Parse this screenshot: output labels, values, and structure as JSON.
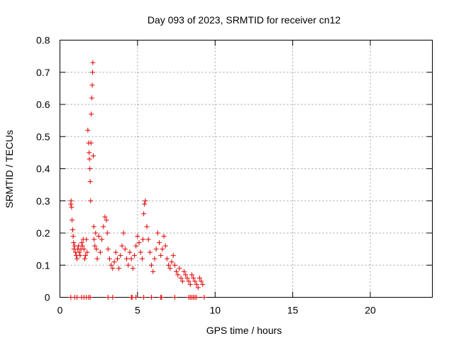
{
  "chart_data": {
    "type": "scatter",
    "title": "Day 093 of 2023, SRMTID for receiver cn12",
    "xlabel": "GPS time / hours",
    "ylabel": "SRMTID / TECUs",
    "xlim": [
      0,
      24
    ],
    "ylim": [
      0,
      0.8
    ],
    "xticks": [
      0,
      5,
      10,
      15,
      20
    ],
    "yticks": [
      0,
      0.1,
      0.2,
      0.3,
      0.4,
      0.5,
      0.6,
      0.7,
      0.8
    ],
    "xtick_labels": [
      "0",
      "5",
      "10",
      "15",
      "20"
    ],
    "ytick_labels": [
      "0",
      "0.1",
      "0.2",
      "0.3",
      "0.4",
      "0.5",
      "0.6",
      "0.7",
      "0.8"
    ],
    "grid": true,
    "marker": "+",
    "marker_color": "#e00000",
    "x": [
      0.7,
      0.72,
      0.75,
      0.78,
      0.82,
      0.85,
      0.88,
      0.9,
      0.95,
      1.0,
      1.05,
      1.1,
      1.15,
      1.2,
      1.25,
      1.3,
      1.35,
      1.4,
      1.45,
      1.5,
      1.55,
      1.6,
      1.65,
      1.7,
      1.75,
      1.8,
      1.85,
      1.88,
      1.9,
      1.93,
      1.95,
      1.98,
      2.0,
      2.02,
      2.05,
      2.08,
      2.1,
      2.12,
      2.15,
      2.18,
      2.2,
      2.25,
      2.3,
      2.35,
      2.4,
      2.5,
      2.6,
      2.7,
      2.8,
      2.9,
      3.0,
      3.05,
      3.1,
      3.2,
      3.3,
      3.4,
      3.5,
      3.6,
      3.7,
      3.8,
      3.9,
      4.0,
      4.1,
      4.2,
      4.3,
      4.4,
      4.5,
      4.6,
      4.7,
      4.8,
      4.9,
      5.0,
      5.1,
      5.2,
      5.3,
      5.35,
      5.4,
      5.45,
      5.5,
      5.6,
      5.7,
      5.8,
      5.9,
      6.0,
      6.1,
      6.2,
      6.3,
      6.4,
      6.5,
      6.6,
      6.7,
      6.8,
      6.9,
      7.0,
      7.1,
      7.2,
      7.3,
      7.4,
      7.5,
      7.6,
      7.7,
      7.8,
      7.9,
      8.0,
      8.1,
      8.2,
      8.3,
      8.4,
      8.5,
      8.6,
      8.7,
      8.8,
      8.9,
      9.0,
      9.1,
      9.2
    ],
    "y": [
      0.29,
      0.3,
      0.28,
      0.24,
      0.21,
      0.19,
      0.17,
      0.15,
      0.16,
      0.14,
      0.13,
      0.12,
      0.15,
      0.16,
      0.14,
      0.13,
      0.15,
      0.17,
      0.16,
      0.18,
      0.15,
      0.12,
      0.13,
      0.18,
      0.14,
      0.52,
      0.48,
      0.45,
      0.43,
      0.4,
      0.36,
      0.3,
      0.48,
      0.57,
      0.62,
      0.66,
      0.7,
      0.73,
      0.44,
      0.22,
      0.18,
      0.16,
      0.2,
      0.15,
      0.12,
      0.19,
      0.14,
      0.18,
      0.22,
      0.25,
      0.24,
      0.2,
      0.15,
      0.12,
      0.1,
      0.09,
      0.11,
      0.14,
      0.12,
      0.09,
      0.13,
      0.16,
      0.2,
      0.15,
      0.12,
      0.1,
      0.14,
      0.12,
      0.09,
      0.13,
      0.16,
      0.19,
      0.17,
      0.14,
      0.12,
      0.18,
      0.26,
      0.29,
      0.3,
      0.22,
      0.18,
      0.14,
      0.1,
      0.08,
      0.12,
      0.15,
      0.2,
      0.17,
      0.13,
      0.15,
      0.19,
      0.16,
      0.12,
      0.1,
      0.09,
      0.11,
      0.13,
      0.1,
      0.08,
      0.07,
      0.09,
      0.06,
      0.05,
      0.08,
      0.07,
      0.06,
      0.05,
      0.04,
      0.07,
      0.06,
      0.05,
      0.04,
      0.03,
      0.06,
      0.05,
      0.04
    ],
    "baseline_x": [
      0.7,
      0.95,
      1.1,
      1.4,
      1.55,
      1.7,
      1.85,
      1.95,
      3.1,
      3.4,
      4.6,
      4.65,
      4.9,
      5.4,
      5.9,
      6.5,
      6.55,
      7.4,
      8.3,
      8.4,
      8.5,
      8.6,
      8.7,
      8.8,
      9.3
    ]
  }
}
